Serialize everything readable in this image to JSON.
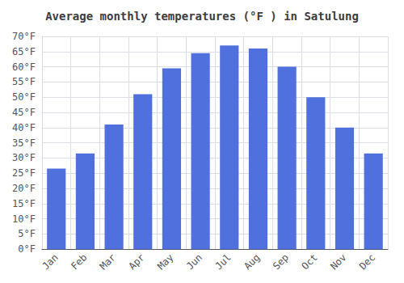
{
  "chart_data": {
    "type": "bar",
    "title": "Average monthly temperatures (°F ) in Satulung",
    "categories": [
      "Jan",
      "Feb",
      "Mar",
      "Apr",
      "May",
      "Jun",
      "Jul",
      "Aug",
      "Sep",
      "Oct",
      "Nov",
      "Dec"
    ],
    "values": [
      26.5,
      31.5,
      41.0,
      51.0,
      59.5,
      64.5,
      67.0,
      66.0,
      60.0,
      50.0,
      40.0,
      31.5
    ],
    "ylim": [
      0,
      70
    ],
    "yticks": [
      {
        "value": 0,
        "label": "0°F"
      },
      {
        "value": 5,
        "label": "5°F"
      },
      {
        "value": 10,
        "label": "10°F"
      },
      {
        "value": 15,
        "label": "15°F"
      },
      {
        "value": 20,
        "label": "20°F"
      },
      {
        "value": 25,
        "label": "25°F"
      },
      {
        "value": 30,
        "label": "30°F"
      },
      {
        "value": 35,
        "label": "35°F"
      },
      {
        "value": 40,
        "label": "40°F"
      },
      {
        "value": 45,
        "label": "45°F"
      },
      {
        "value": 50,
        "label": "50°F"
      },
      {
        "value": 55,
        "label": "55°F"
      },
      {
        "value": 60,
        "label": "60°F"
      },
      {
        "value": 65,
        "label": "65°F"
      },
      {
        "value": 70,
        "label": "70°F"
      }
    ],
    "grid": true
  }
}
